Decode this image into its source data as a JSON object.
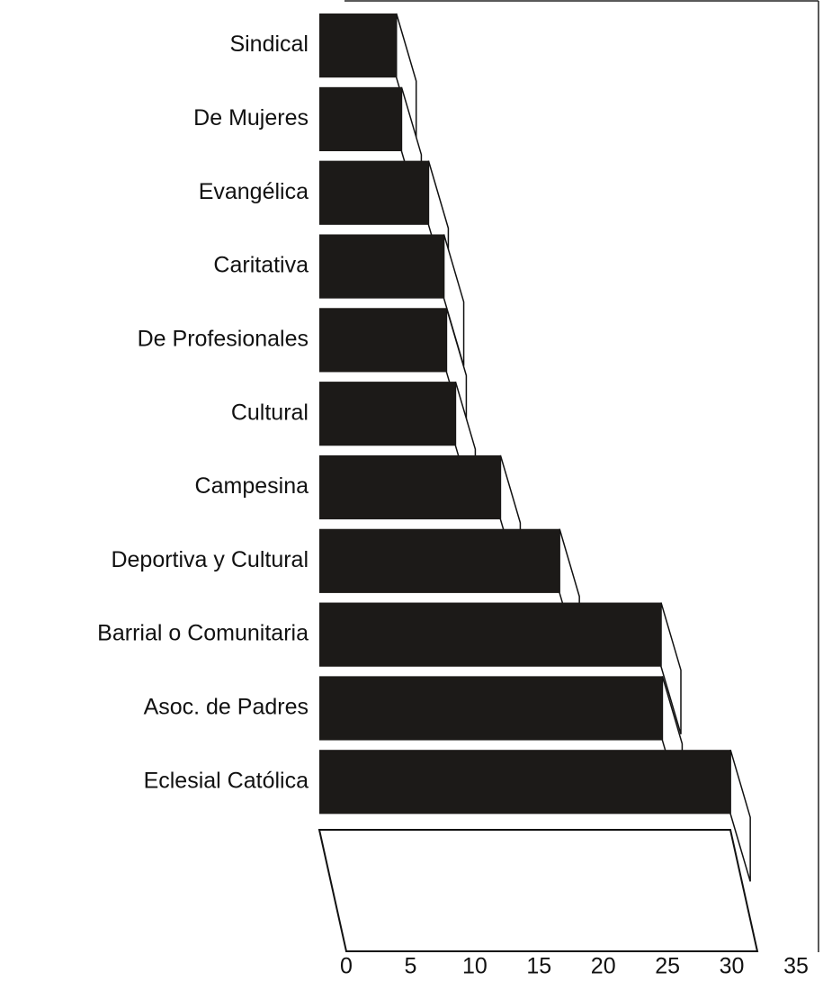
{
  "chart_data": {
    "type": "bar",
    "orientation": "horizontal",
    "categories": [
      "Sindical",
      "De Mujeres",
      "Evangélica",
      "Caritativa",
      "De Profesionales",
      "Cultural",
      "Campesina",
      "Deportiva y Cultural",
      "Barrial o Comunitaria",
      "Asoc. de Padres",
      "Eclesial Católica"
    ],
    "values": [
      6.0,
      6.4,
      8.5,
      9.7,
      9.9,
      10.6,
      14.1,
      18.7,
      26.6,
      26.7,
      32.0
    ],
    "color": "#1c1a18",
    "xlim": [
      0,
      35
    ],
    "xticks": [
      0,
      5,
      10,
      15,
      20,
      25,
      30,
      35
    ]
  }
}
